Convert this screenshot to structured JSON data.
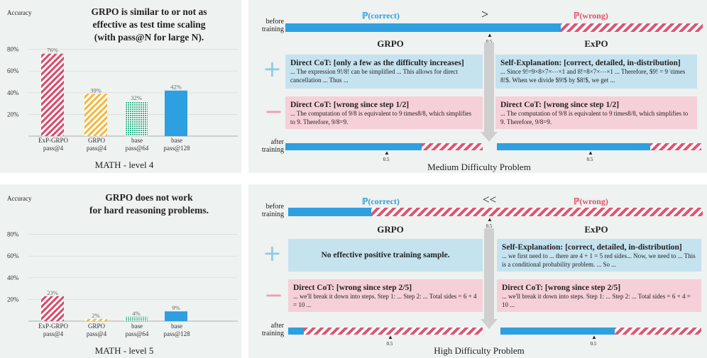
{
  "charts": {
    "top": {
      "annotation_line1": "GRPO is similar to or not as",
      "annotation_line2": "effective as test time scaling",
      "annotation_line3": "(with pass@N for large N).",
      "ylabel": "Accuracy",
      "caption": "MATH - level 4"
    },
    "bottom": {
      "annotation_line1": "GRPO does not work",
      "annotation_line2": "for hard reasoning problems.",
      "ylabel": "Accuracy",
      "caption": "MATH - level 5"
    },
    "ticks": [
      "20%",
      "40%",
      "60%",
      "80%"
    ],
    "cats": [
      {
        "l1": "ExP-GRPO",
        "l2": "pass@4"
      },
      {
        "l1": "GRPO",
        "l2": "pass@4"
      },
      {
        "l1": "base",
        "l2": "pass@64"
      },
      {
        "l1": "base",
        "l2": "pass@128"
      }
    ]
  },
  "chart_data": [
    {
      "type": "bar",
      "title": "MATH - level 4",
      "ylabel": "Accuracy",
      "categories": [
        "ExP-GRPO pass@4",
        "GRPO pass@4",
        "base pass@64",
        "base pass@128"
      ],
      "values": [
        76,
        39,
        32,
        42
      ],
      "value_labels": [
        "76%",
        "39%",
        "32%",
        "42%"
      ],
      "ylim": [
        0,
        90
      ],
      "colors": [
        "#d84a6a",
        "#f0b840",
        "#38b089",
        "#2e9fe0"
      ]
    },
    {
      "type": "bar",
      "title": "MATH - level 5",
      "ylabel": "Accuracy",
      "categories": [
        "ExP-GRPO pass@4",
        "GRPO pass@4",
        "base pass@64",
        "base pass@128"
      ],
      "values": [
        23,
        2,
        4,
        9
      ],
      "value_labels": [
        "23%",
        "2%",
        "4%",
        "9%"
      ],
      "ylim": [
        0,
        90
      ],
      "colors": [
        "#d84a6a",
        "#f0b840",
        "#38b089",
        "#2e9fe0"
      ]
    }
  ],
  "diagrams": {
    "medium": {
      "p_correct": "ℙ(correct)",
      "relation": ">",
      "p_wrong": "ℙ(wrong)",
      "before": "before",
      "training": "training",
      "after": "after",
      "half": "0.5",
      "grpo": "GRPO",
      "expo": "ExPO",
      "plus": "+",
      "minus": "−",
      "before_frac": 0.66,
      "after_grpo_frac": 0.69,
      "after_expo_frac": 0.75,
      "grpo_pos_title": "Direct CoT: [only a few as the difficulty increases]",
      "grpo_pos_text": "... The expression 9!/8! can be simplified ... This allows for direct cancellation ... Thus ...",
      "expo_pos_title": "Self-Explanation: [correct, detailed,  in-distribution]",
      "expo_pos_text": "... Since 9!=9×8×7×⋯×1 and 8!=8×7×⋯×1 ... Therefore, $9! = 9 \\times 8!$. When we divide  $9!$ by $8!$, we get ...",
      "grpo_neg_title": "Direct CoT: [wrong since step 1/2]",
      "grpo_neg_text": "... The computation of 9/8 is equivalent to 9 times8/8, which simplifies to 9. Therefore, 9/8=9.",
      "expo_neg_title": "Direct CoT: [wrong since step 1/2]",
      "expo_neg_text": "... The computation of 9/8 is equivalent to 9 times8/8, which simplifies to 9. Therefore, 9/8=9.",
      "caption": "Medium Difficulty Problem"
    },
    "high": {
      "p_correct": "ℙ(correct)",
      "relation": "<<",
      "p_wrong": "ℙ(wrong)",
      "before": "before",
      "training": "training",
      "after": "after",
      "half": "0.5",
      "grpo": "GRPO",
      "expo": "ExPO",
      "plus": "+",
      "minus": "−",
      "before_frac": 0.2,
      "after_grpo_frac": 0.08,
      "after_expo_frac": 0.57,
      "grpo_pos_text": "No effective positive training sample.",
      "expo_pos_title": "Self-Explanation: [correct, detailed,  in-distribution]",
      "expo_pos_text": "... we first need to ... there are 4 + 1 = 5 red sides... Now, we need to ... This is a conditional probability problem. ... So ...",
      "grpo_neg_title": "Direct CoT: [wrong since step 2/5]",
      "grpo_neg_text": "... we'll break it down into steps. Step 1: ... Step 2: ... Total sides = 6 + 4 = 10 ...",
      "expo_neg_title": "Direct CoT: [wrong since step 2/5]",
      "expo_neg_text": "... we'll break it down into steps. Step 1: ... Step 2: ... Total sides = 6 + 4 = 10 ...",
      "caption": "High Difficulty Problem"
    }
  }
}
